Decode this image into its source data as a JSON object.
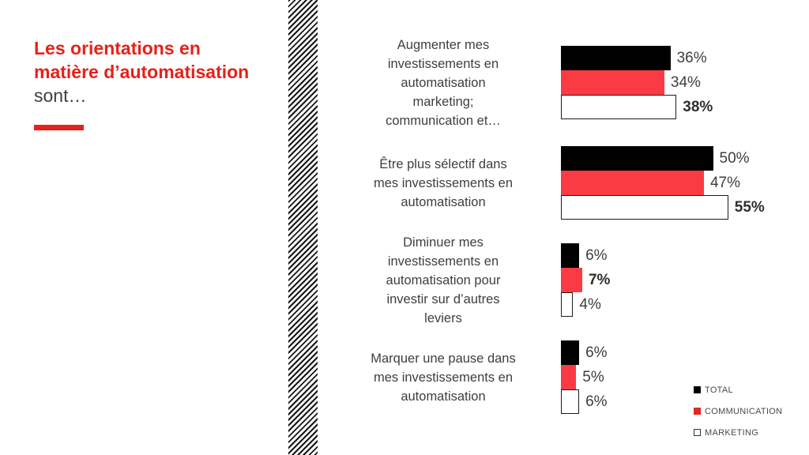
{
  "slide": {
    "title": {
      "line1": "Les orientations en",
      "line2": "matière d’automatisation",
      "line3": "sont…"
    },
    "colors": {
      "accent_red": "#E62119",
      "body_text": "#3E3E3E"
    }
  },
  "chart_data": {
    "type": "bar",
    "orientation": "horizontal",
    "value_unit": "%",
    "xlim": [
      0,
      60
    ],
    "grid": false,
    "legend_position": "bottom-right",
    "series": [
      "TOTAL",
      "COMMUNICATION",
      "MARKETING"
    ],
    "colors": {
      "total": "#000000",
      "communication": "#FA3B44",
      "marketing": "#FFFFFF",
      "marketing_border": "#1C1C1C"
    },
    "groups": [
      {
        "label_lines": [
          "Augmenter mes",
          "investissements en",
          "automatisation",
          "marketing;",
          "communication et…"
        ],
        "values": {
          "total": 36,
          "communication": 34,
          "marketing": 38
        },
        "value_labels": [
          "36%",
          "34%",
          "38%"
        ],
        "bold_flags": [
          false,
          false,
          true
        ]
      },
      {
        "label_lines": [
          "Être plus sélectif dans",
          "mes investissements en",
          "automatisation"
        ],
        "values": {
          "total": 50,
          "communication": 47,
          "marketing": 55
        },
        "value_labels": [
          "50%",
          "47%",
          "55%"
        ],
        "bold_flags": [
          false,
          false,
          true
        ]
      },
      {
        "label_lines": [
          "Diminuer mes",
          "investissements en",
          "automatisation pour",
          "investir sur d’autres",
          "leviers"
        ],
        "values": {
          "total": 6,
          "communication": 7,
          "marketing": 4
        },
        "value_labels": [
          "6%",
          "7%",
          "4%"
        ],
        "bold_flags": [
          false,
          true,
          false
        ]
      },
      {
        "label_lines": [
          "Marquer une pause dans",
          "mes investissements en",
          "automatisation"
        ],
        "values": {
          "total": 6,
          "communication": 5,
          "marketing": 6
        },
        "value_labels": [
          "6%",
          "5%",
          "6%"
        ],
        "bold_flags": [
          false,
          false,
          false
        ]
      }
    ],
    "legend": [
      {
        "label": "TOTAL",
        "color": "#000000",
        "filled": true
      },
      {
        "label": "COMMUNICATION",
        "color": "#E32626",
        "filled": true
      },
      {
        "label": "MARKETING",
        "color": "#FFFFFF",
        "filled": false
      }
    ]
  }
}
